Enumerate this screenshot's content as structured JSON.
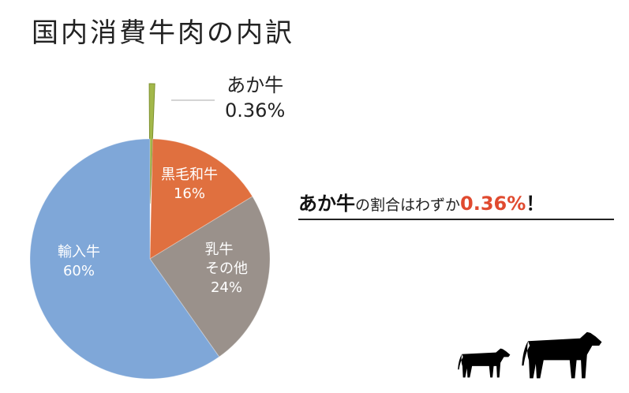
{
  "title": "国内消費牛肉の内訳",
  "chart_data": {
    "type": "pie",
    "title": "国内消費牛肉の内訳",
    "start": "top-clockwise",
    "slices": [
      {
        "label": "あか牛",
        "value": 0.36,
        "display": "0.36%",
        "color": "#a3b84a",
        "exploded": true
      },
      {
        "label": "黒毛和牛",
        "value": 16,
        "display": "16%",
        "color": "#e0703f"
      },
      {
        "label": "乳牛その他",
        "label_lines": [
          "乳牛",
          "その他"
        ],
        "value": 24,
        "display": "24%",
        "color": "#9a918b"
      },
      {
        "label": "輸入牛",
        "value": 60,
        "display": "60%",
        "color": "#7fa7d8"
      }
    ]
  },
  "headline": {
    "part1": "あか牛",
    "part2": "の割合はわずか",
    "part3": "0.36%",
    "part4": "！"
  },
  "illustration": {
    "icon": "cow-silhouettes"
  }
}
